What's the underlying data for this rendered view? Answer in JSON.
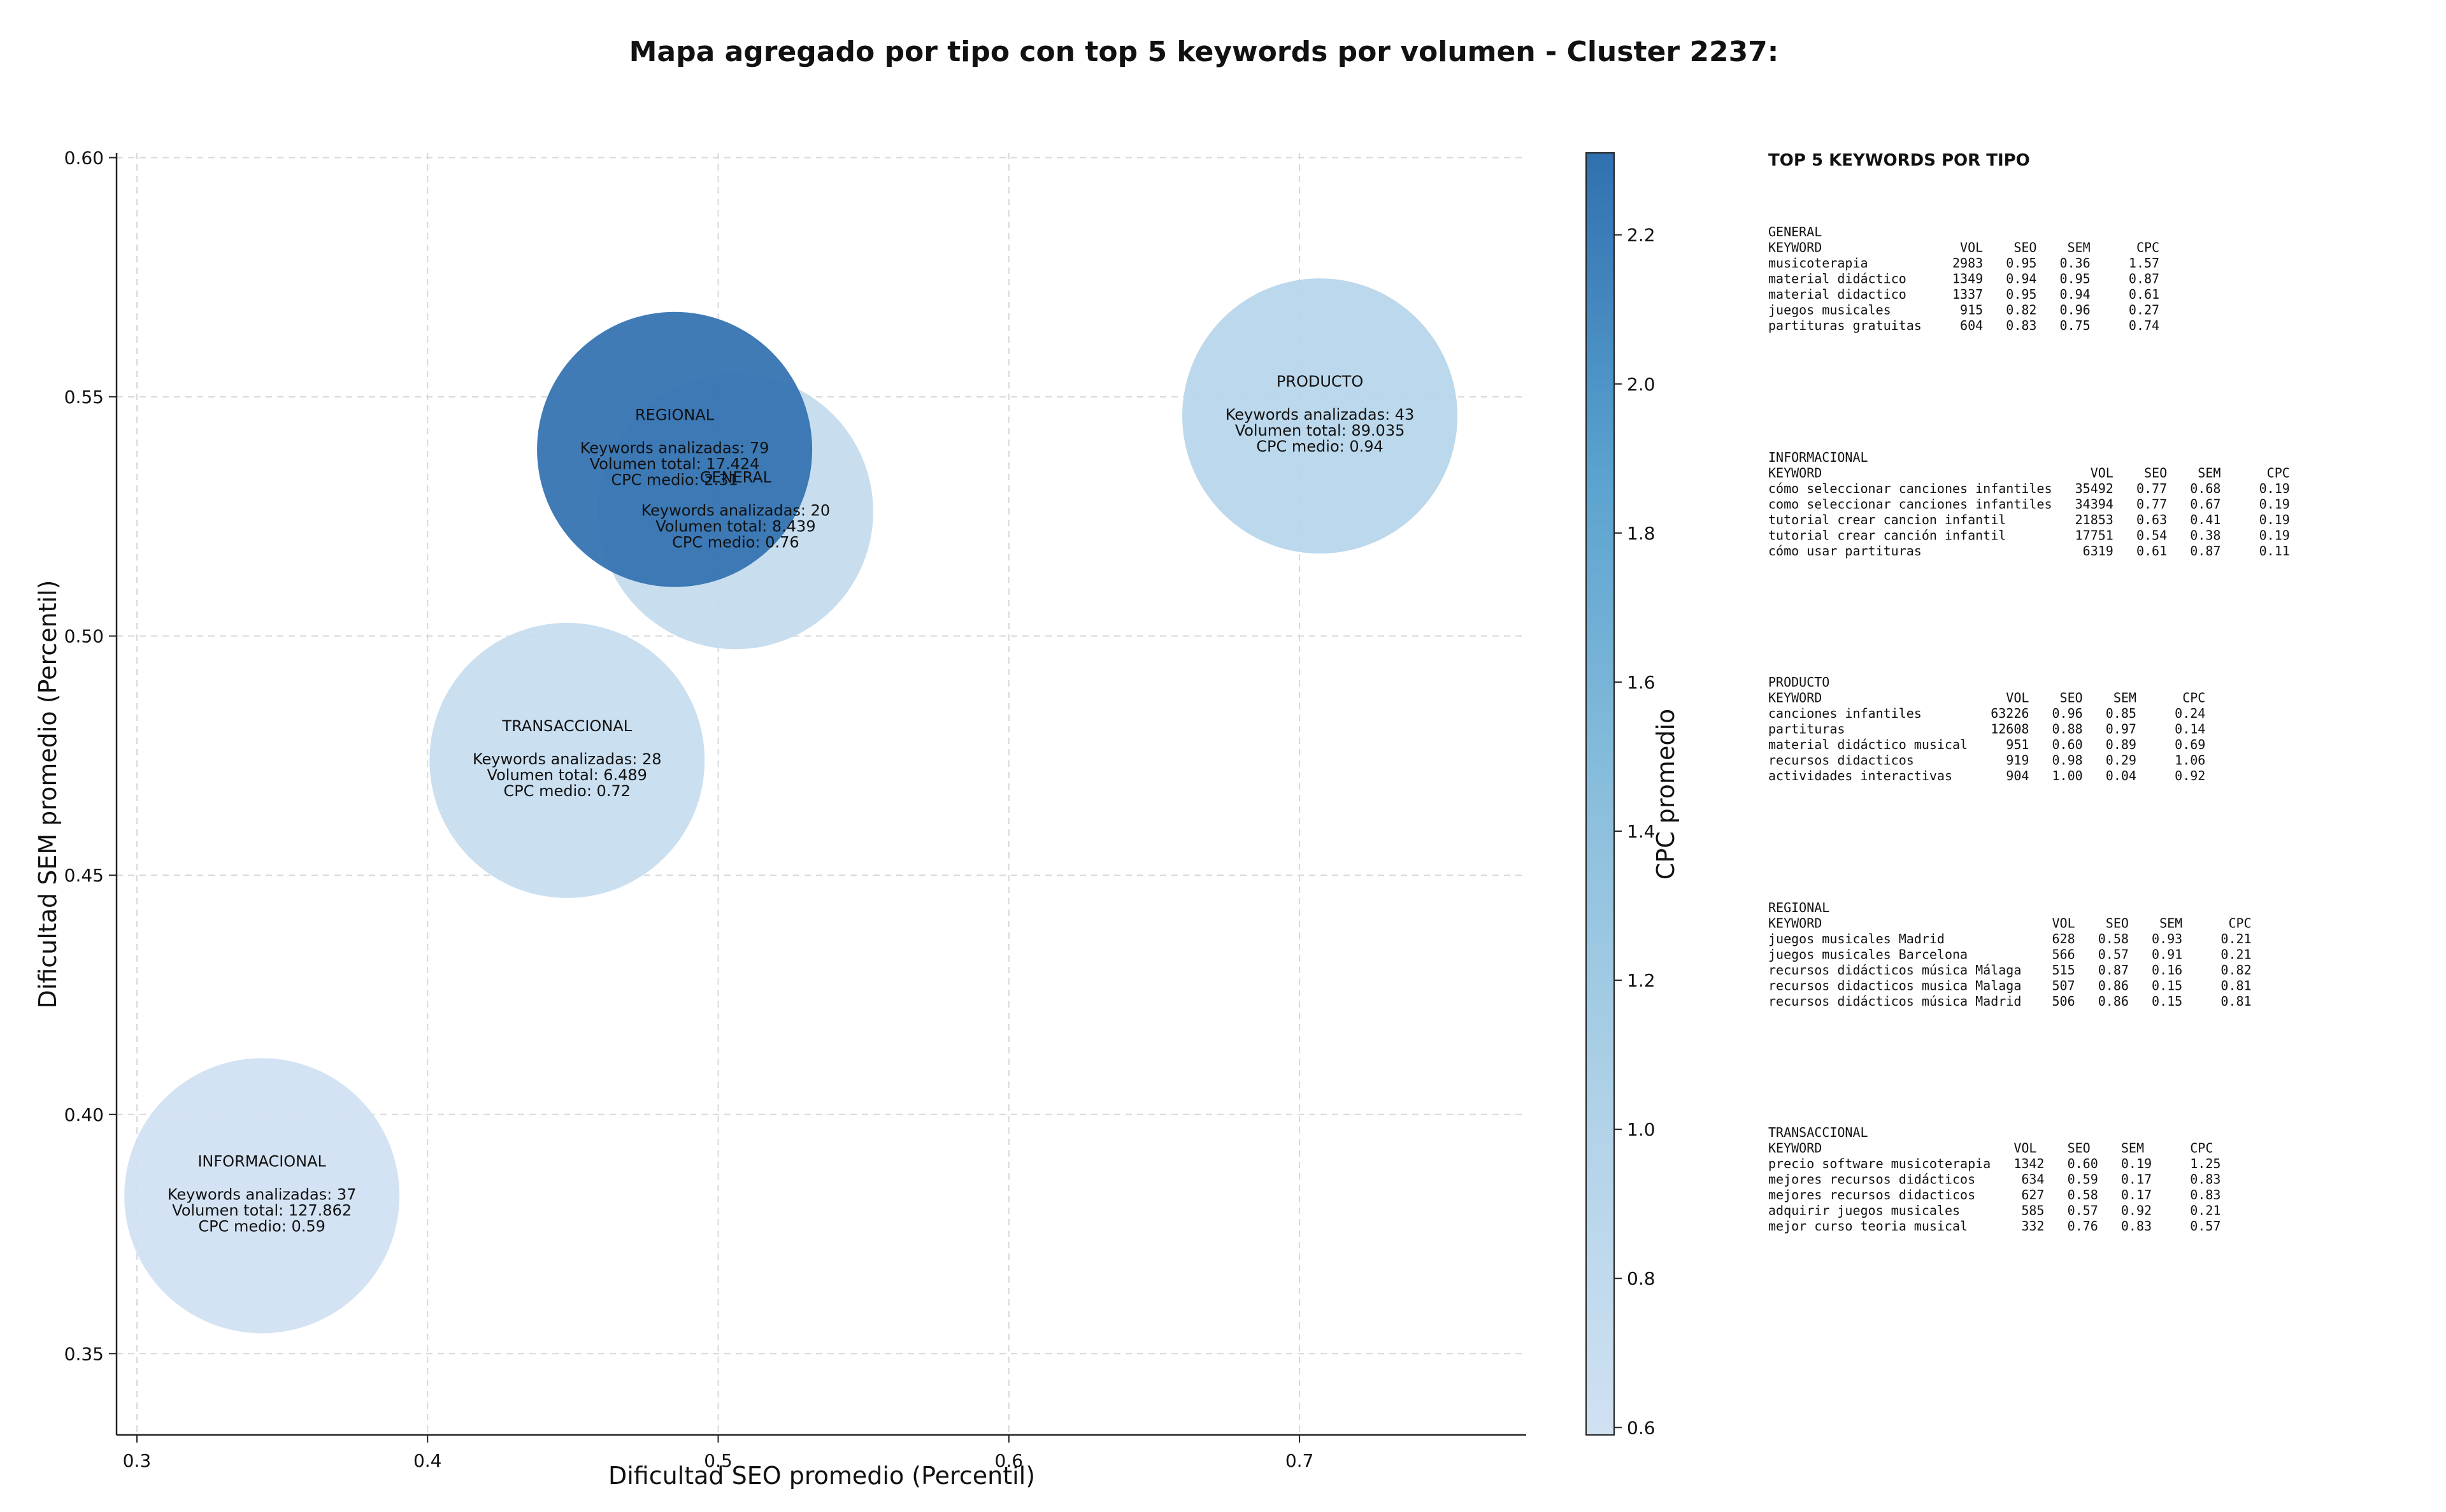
{
  "chart_data": {
    "type": "scatter",
    "title": "Mapa agregado por tipo con top 5 keywords por volumen - Cluster 2237:",
    "xlabel": "Dificultad SEO promedio (Percentil)",
    "ylabel": "Dificultad SEM promedio (Percentil)",
    "xlim": [
      0.293,
      0.778
    ],
    "ylim": [
      0.333,
      0.601
    ],
    "xticks": [
      "0.3",
      "0.4",
      "0.5",
      "0.6",
      "0.7"
    ],
    "yticks": [
      "0.35",
      "0.40",
      "0.45",
      "0.50",
      "0.55",
      "0.60"
    ],
    "grid": true,
    "colorbar": {
      "label": "CPC promedio",
      "range": [
        0.59,
        2.31
      ],
      "ticks": [
        "0.6",
        "0.8",
        "1.0",
        "1.2",
        "1.4",
        "1.6",
        "1.8",
        "2.0",
        "2.2"
      ],
      "colormap": "Blues",
      "color_low": "#d0e1f2",
      "color_high": "#3070b0"
    },
    "points": [
      {
        "name": "GENERAL",
        "x": 0.506,
        "y": 0.526,
        "cpc": 0.76,
        "line1": "Keywords analizadas: 20",
        "line2": "Volumen total: 8.439",
        "line3": "CPC medio: 0.76"
      },
      {
        "name": "INFORMACIONAL",
        "x": 0.343,
        "y": 0.383,
        "cpc": 0.59,
        "line1": "Keywords analizadas: 37",
        "line2": "Volumen total: 127.862",
        "line3": "CPC medio: 0.59"
      },
      {
        "name": "PRODUCTO",
        "x": 0.707,
        "y": 0.546,
        "cpc": 0.94,
        "line1": "Keywords analizadas: 43",
        "line2": "Volumen total: 89.035",
        "line3": "CPC medio: 0.94"
      },
      {
        "name": "TRANSACCIONAL",
        "x": 0.448,
        "y": 0.474,
        "cpc": 0.72,
        "line1": "Keywords analizadas: 28",
        "line2": "Volumen total: 6.489",
        "line3": "CPC medio: 0.72"
      },
      {
        "name": "REGIONAL",
        "x": 0.485,
        "y": 0.539,
        "cpc": 2.31,
        "line1": "Keywords analizadas: 79",
        "line2": "Volumen total: 17.424",
        "line3": "CPC medio: 2.31"
      }
    ]
  },
  "side_panel": {
    "title": "TOP 5 KEYWORDS POR TIPO",
    "sections": [
      {
        "name": "GENERAL",
        "header": "KEYWORD                  VOL    SEO    SEM      CPC",
        "rows": [
          "musicoterapia           2983   0.95   0.36     1.57",
          "material didáctico      1349   0.94   0.95     0.87",
          "material didactico      1337   0.95   0.94     0.61",
          "juegos musicales         915   0.82   0.96     0.27",
          "partituras gratuitas     604   0.83   0.75     0.74"
        ]
      },
      {
        "name": "INFORMACIONAL",
        "header": "KEYWORD                                   VOL    SEO    SEM      CPC",
        "rows": [
          "cómo seleccionar canciones infantiles   35492   0.77   0.68     0.19",
          "como seleccionar canciones infantiles   34394   0.77   0.67     0.19",
          "tutorial crear cancion infantil         21853   0.63   0.41     0.19",
          "tutorial crear canción infantil         17751   0.54   0.38     0.19",
          "cómo usar partituras                     6319   0.61   0.87     0.11"
        ]
      },
      {
        "name": "PRODUCTO",
        "header": "KEYWORD                        VOL    SEO    SEM      CPC",
        "rows": [
          "canciones infantiles         63226   0.96   0.85     0.24",
          "partituras                   12608   0.88   0.97     0.14",
          "material didáctico musical     951   0.60   0.89     0.69",
          "recursos didacticos            919   0.98   0.29     1.06",
          "actividades interactivas       904   1.00   0.04     0.92"
        ]
      },
      {
        "name": "REGIONAL",
        "header": "KEYWORD                              VOL    SEO    SEM      CPC",
        "rows": [
          "juegos musicales Madrid              628   0.58   0.93     0.21",
          "juegos musicales Barcelona           566   0.57   0.91     0.21",
          "recursos didácticos música Málaga    515   0.87   0.16     0.82",
          "recursos didacticos musica Malaga    507   0.86   0.15     0.81",
          "recursos didácticos música Madrid    506   0.86   0.15     0.81"
        ]
      },
      {
        "name": "TRANSACCIONAL",
        "header": "KEYWORD                         VOL    SEO    SEM      CPC",
        "rows": [
          "precio software musicoterapia   1342   0.60   0.19     1.25",
          "mejores recursos didácticos      634   0.59   0.17     0.83",
          "mejores recursos didacticos      627   0.58   0.17     0.83",
          "adquirir juegos musicales        585   0.57   0.92     0.21",
          "mejor curso teoria musical       332   0.76   0.83     0.57"
        ]
      }
    ]
  }
}
